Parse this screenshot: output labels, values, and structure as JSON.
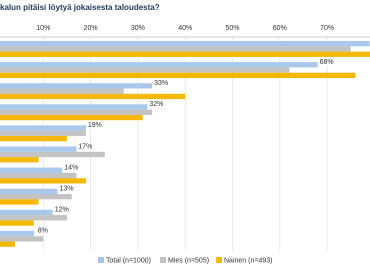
{
  "chart_data": {
    "type": "hbar",
    "title": "kalun pitäisi löytyä jokaisesta taloudesta?",
    "categories": [
      null,
      null,
      null,
      null,
      null,
      null,
      null,
      null,
      null,
      null
    ],
    "series": [
      {
        "name": "Total (n=1000)",
        "color": "#a9c8ec",
        "values": [
          79,
          68,
          33,
          32,
          19,
          17,
          14,
          13,
          12,
          8
        ],
        "value_labels": [
          null,
          "68%",
          "33%",
          "32%",
          "19%",
          "17%",
          "14%",
          "13%",
          "12%",
          "8%"
        ]
      },
      {
        "name": "Mies (n=505)",
        "color": "#c3c3c3",
        "values": [
          75,
          62,
          27,
          33,
          19,
          23,
          17,
          16,
          15,
          10
        ]
      },
      {
        "name": "Nainen (n=493)",
        "color": "#f5b800",
        "values": [
          80,
          76,
          40,
          31,
          15,
          9,
          19,
          9,
          8,
          4
        ]
      }
    ],
    "xlim": [
      0,
      80
    ],
    "xticks": [
      {
        "value": 10,
        "label": "10%"
      },
      {
        "value": 20,
        "label": "20%"
      },
      {
        "value": 30,
        "label": "30%"
      },
      {
        "value": 40,
        "label": "40%"
      },
      {
        "value": 50,
        "label": "50%"
      },
      {
        "value": 60,
        "label": "60%"
      },
      {
        "value": 70,
        "label": "70%"
      }
    ],
    "grid": true
  }
}
